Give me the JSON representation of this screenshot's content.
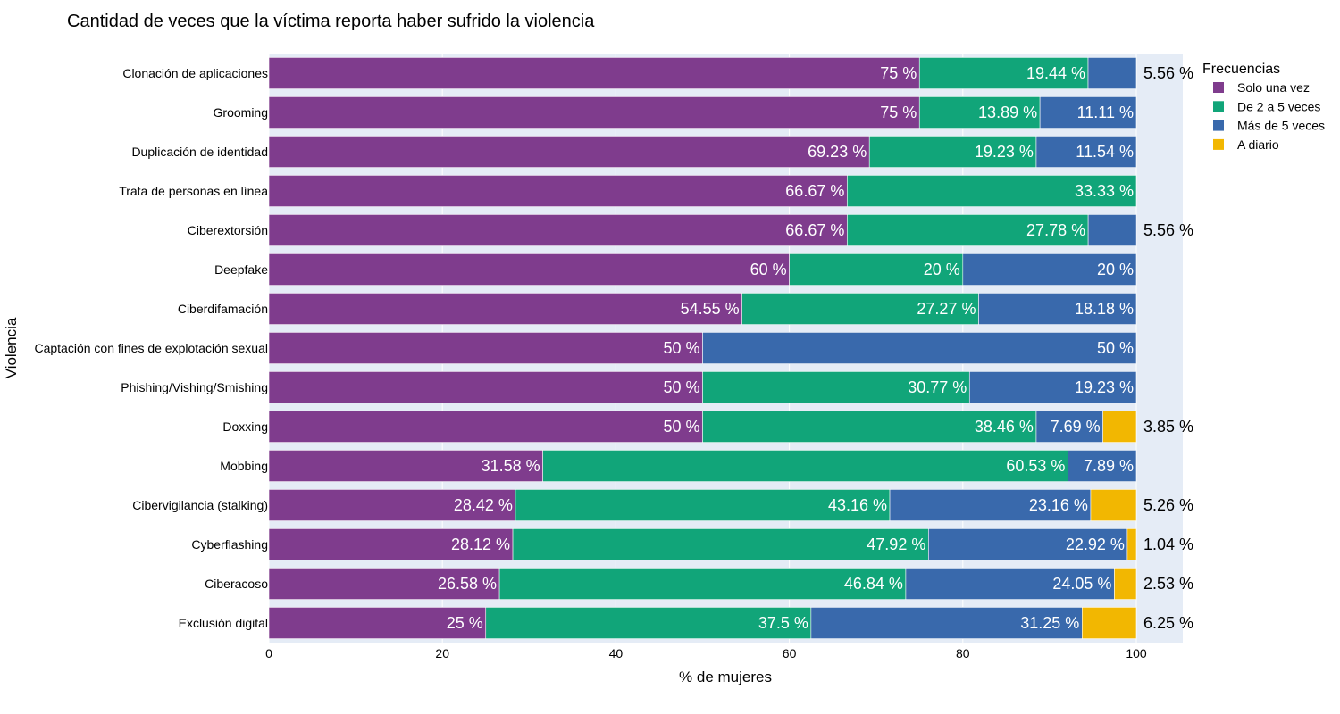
{
  "chart_data": {
    "type": "bar",
    "orientation": "horizontal",
    "stacked": true,
    "title": "Cantidad de veces que la víctima reporta haber sufrido la violencia",
    "xlabel": "% de mujeres",
    "ylabel": "Violencia",
    "xlim": [
      0,
      105
    ],
    "xticks": [
      0,
      20,
      40,
      60,
      80,
      100
    ],
    "grid": true,
    "legend_position": "top-right",
    "legend_title": "Frecuencias",
    "categories": [
      "Clonación de aplicaciones",
      "Grooming",
      "Duplicación de identidad",
      "Trata de personas en línea",
      "Ciberextorsión",
      "Deepfake",
      "Ciberdifamación",
      "Captación con fines de explotación sexual",
      "Phishing/Vishing/Smishing",
      "Doxxing",
      "Mobbing",
      "Cibervigilancia (stalking)",
      "Cyberflashing",
      "Ciberacoso",
      "Exclusión digital"
    ],
    "series": [
      {
        "name": "Solo una vez",
        "color": "#7f3c8d",
        "values": [
          75,
          75,
          69.23,
          66.67,
          66.67,
          60,
          54.55,
          50,
          50,
          50,
          31.58,
          28.42,
          28.12,
          26.58,
          25
        ]
      },
      {
        "name": "De 2 a 5 veces",
        "color": "#11a579",
        "values": [
          19.44,
          13.89,
          19.23,
          33.33,
          27.78,
          20,
          27.27,
          0,
          30.77,
          38.46,
          60.53,
          43.16,
          47.92,
          46.84,
          37.5
        ]
      },
      {
        "name": "Más de 5 veces",
        "color": "#3969ac",
        "values": [
          5.56,
          11.11,
          11.54,
          0,
          5.56,
          20,
          18.18,
          50,
          19.23,
          7.69,
          7.89,
          23.16,
          22.92,
          24.05,
          31.25
        ]
      },
      {
        "name": "A diario",
        "color": "#f2b701",
        "values": [
          0,
          0,
          0,
          0,
          0,
          0,
          0,
          0,
          0,
          3.85,
          0,
          5.26,
          1.04,
          2.53,
          6.25
        ]
      }
    ],
    "value_suffix": " %",
    "plot_background": "#e5ecf6"
  }
}
